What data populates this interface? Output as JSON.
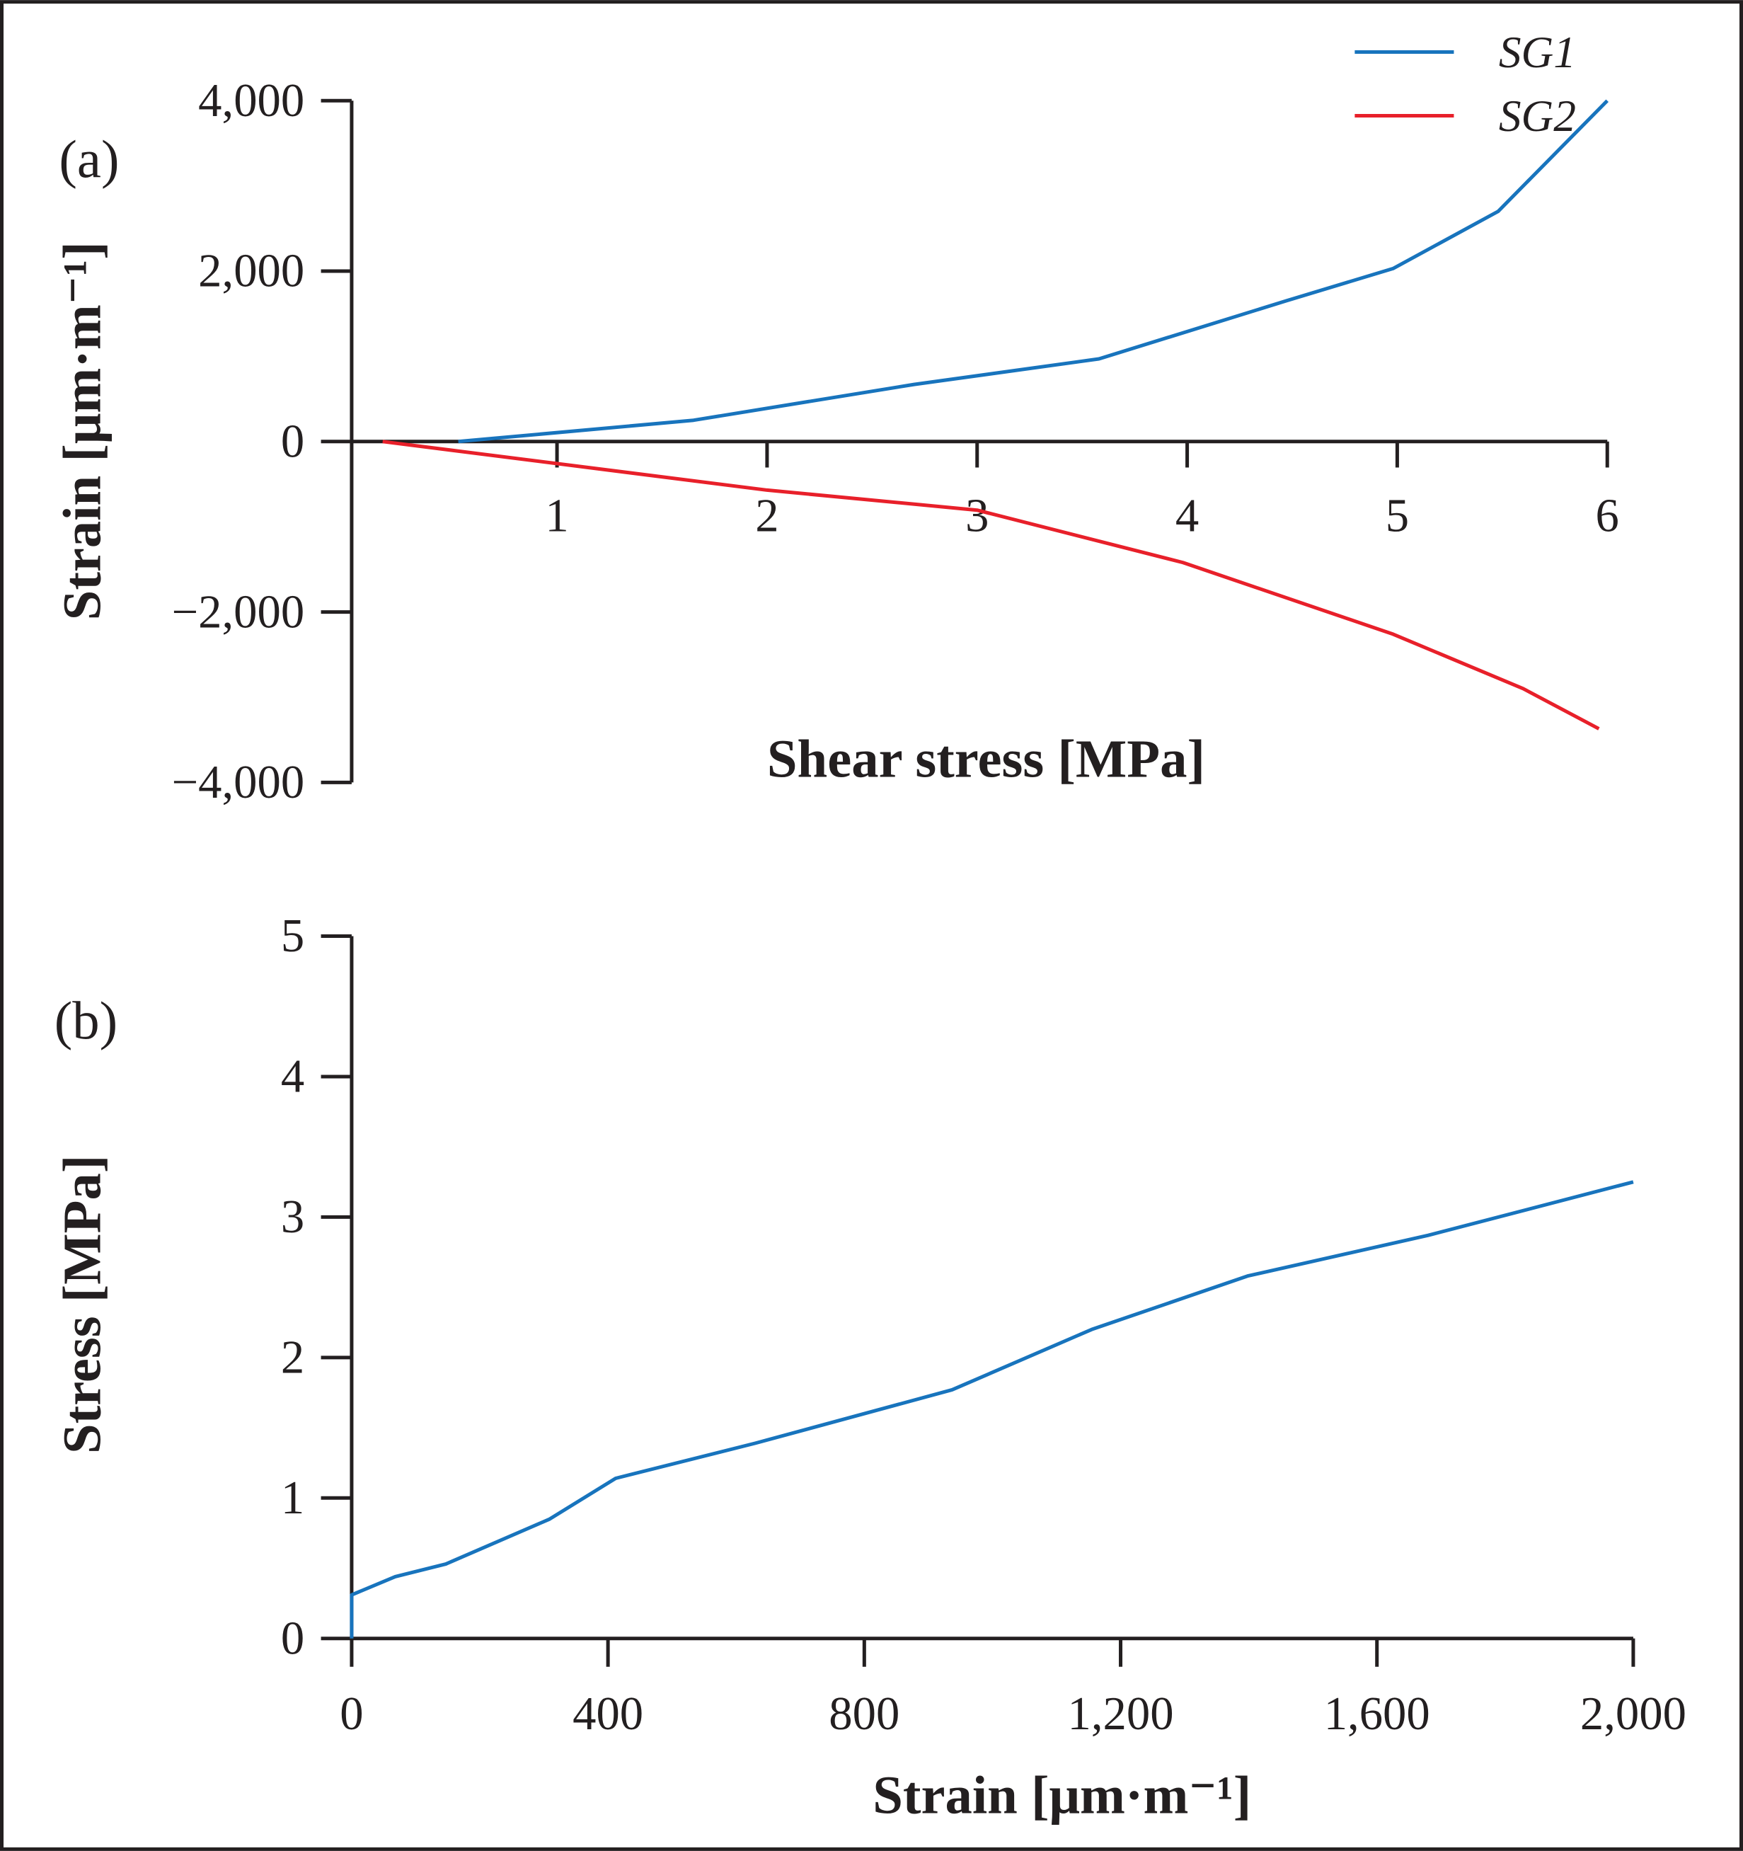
{
  "colors": {
    "SG1": "#1874bd",
    "SG2": "#e8202a",
    "axis": "#231f20"
  },
  "chart_data": [
    {
      "type": "line",
      "panel_label": "(a)",
      "xlabel": "Shear stress [MPa]",
      "ylabel": "Strain [μm·m⁻¹]",
      "xlim": [
        0,
        6
      ],
      "ylim": [
        -4000,
        4000
      ],
      "xticks": [
        1,
        2,
        3,
        4,
        5,
        6
      ],
      "xtick_labels": [
        "1",
        "2",
        "3",
        "4",
        "5",
        "6"
      ],
      "yticks": [
        4000,
        2000,
        0,
        -2000,
        -4000
      ],
      "ytick_labels": [
        "4,000",
        "2,000",
        "0",
        "−2,000",
        "−4,000"
      ],
      "grid": false,
      "legend": "top-right",
      "series": [
        {
          "name": "SG1",
          "x": [
            0.53,
            1.65,
            2.7,
            3.58,
            4.47,
            4.98,
            5.48,
            6.0
          ],
          "y": [
            0,
            250,
            670,
            970,
            1650,
            2030,
            2700,
            4000
          ]
        },
        {
          "name": "SG2",
          "x": [
            0.17,
            2.0,
            3.0,
            3.98,
            4.98,
            5.6,
            5.96
          ],
          "y": [
            0,
            -570,
            -805,
            -1420,
            -2260,
            -2900,
            -3370
          ]
        }
      ]
    },
    {
      "type": "line",
      "panel_label": "(b)",
      "xlabel": "Strain [μm·m⁻¹]",
      "ylabel": "Stress [MPa]",
      "xlim": [
        0,
        2000
      ],
      "ylim": [
        0,
        5
      ],
      "xticks": [
        0,
        400,
        800,
        1200,
        1600,
        2000
      ],
      "xtick_labels": [
        "0",
        "400",
        "800",
        "1,200",
        "1,600",
        "2,000"
      ],
      "yticks": [
        0,
        1,
        2,
        3,
        4,
        5
      ],
      "ytick_labels": [
        "0",
        "1",
        "2",
        "3",
        "4",
        "5"
      ],
      "grid": false,
      "series": [
        {
          "x": [
            0,
            0,
            68,
            147,
            309,
            412,
            630,
            937,
            1155,
            1398,
            1680,
            2000
          ],
          "y": [
            0,
            0.31,
            0.44,
            0.53,
            0.85,
            1.14,
            1.39,
            1.77,
            2.2,
            2.58,
            2.87,
            3.25
          ]
        }
      ]
    }
  ]
}
